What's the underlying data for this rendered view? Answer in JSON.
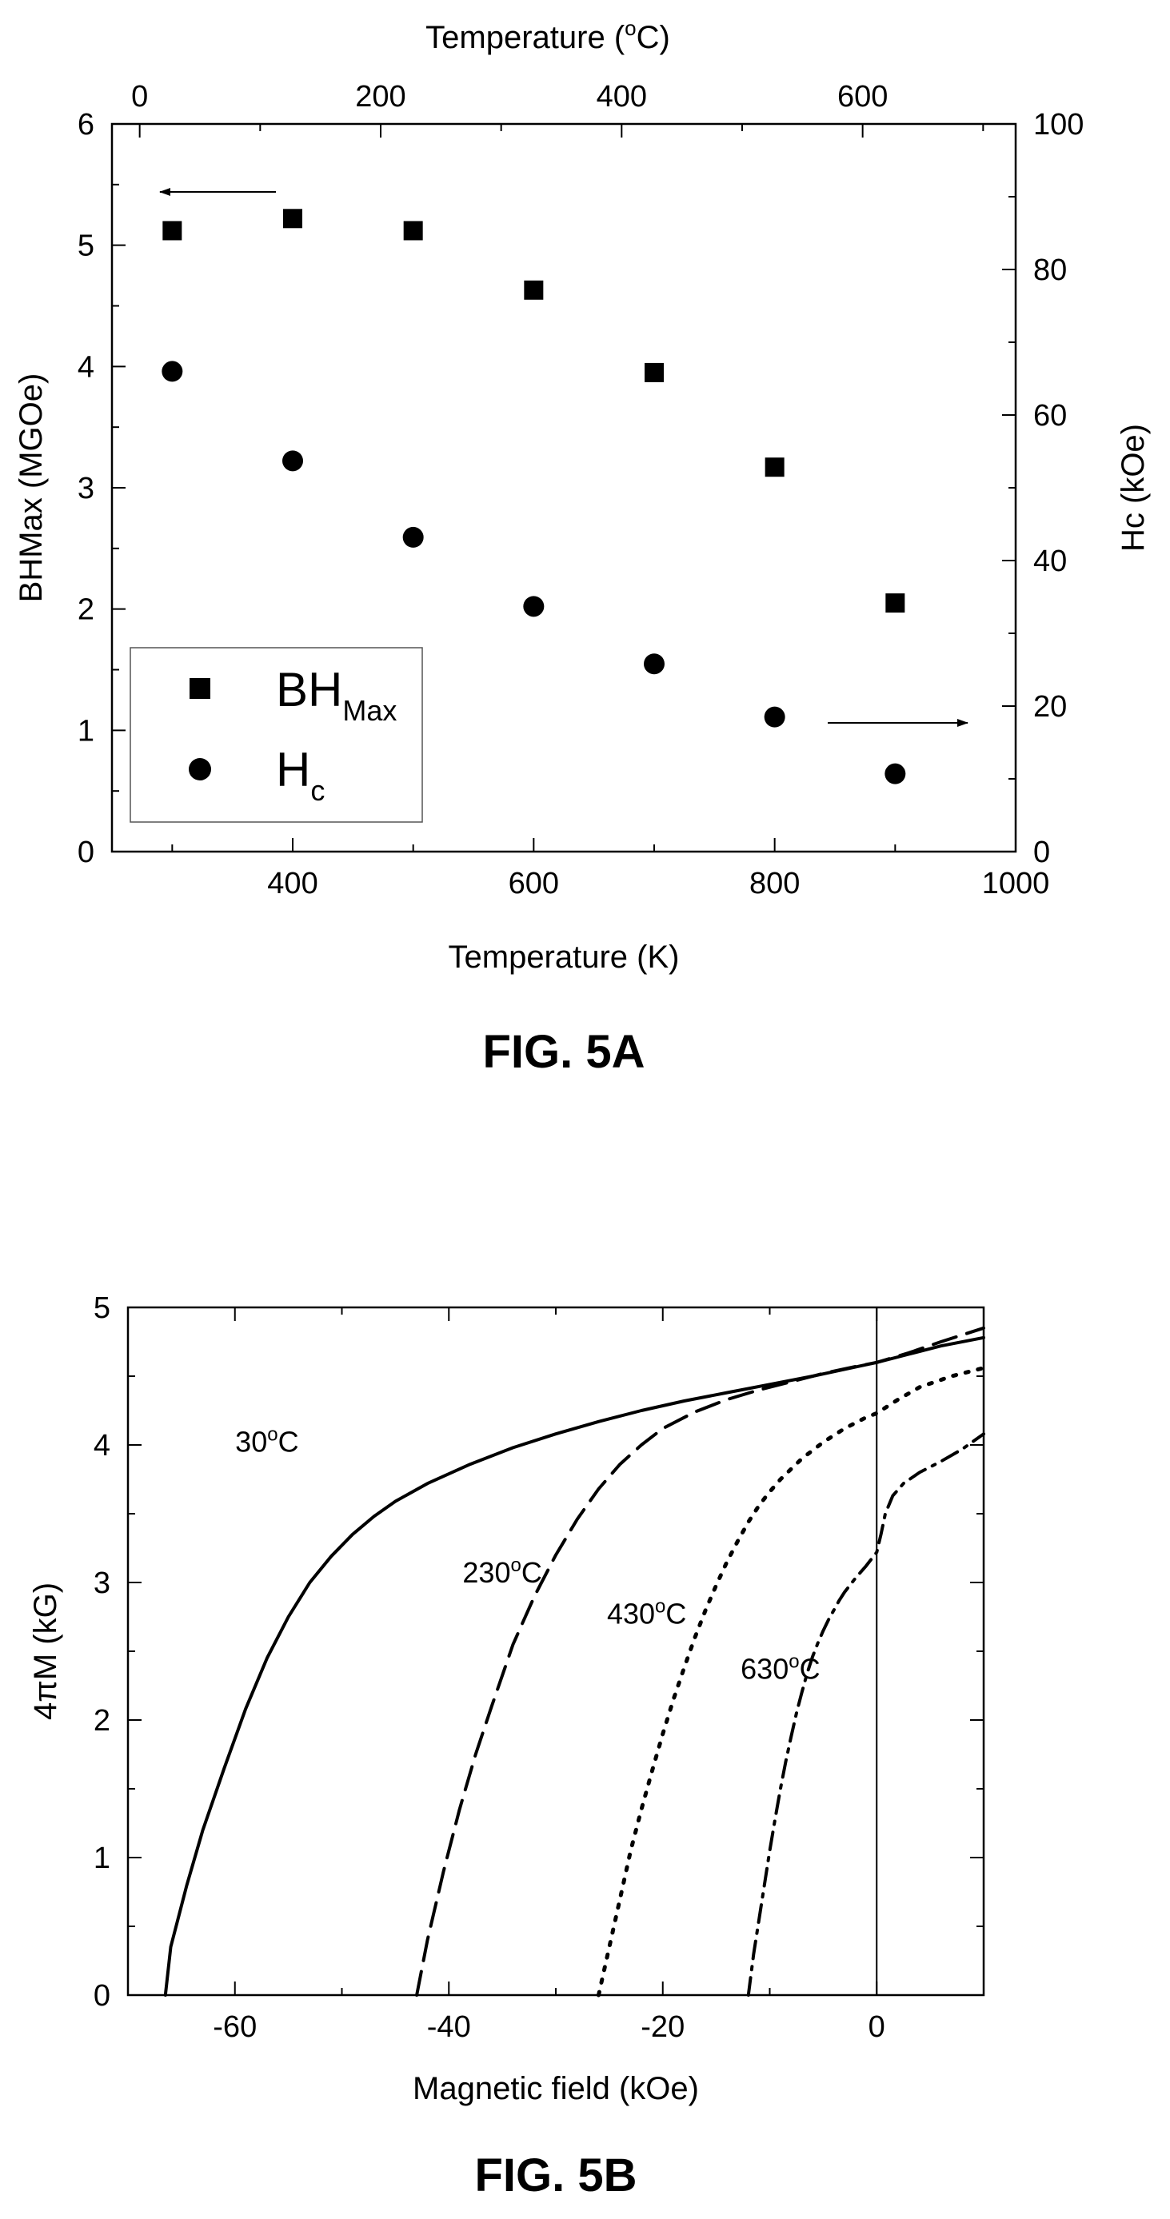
{
  "chart_data": [
    {
      "id": "fig5a",
      "type": "scatter",
      "caption": "FIG. 5A",
      "xlabel": "Temperature (K)",
      "xlim": [
        250,
        1000
      ],
      "xticks": [
        400,
        600,
        800,
        1000
      ],
      "x2label": "Temperature (",
      "x2label_sup": "o",
      "x2label_end": "C)",
      "x2lim": [
        -23,
        727
      ],
      "x2ticks": [
        0,
        200,
        400,
        600
      ],
      "ylabel": "BHMax (MGOe)",
      "ylim": [
        0,
        6
      ],
      "yticks": [
        0,
        1,
        2,
        3,
        4,
        5,
        6
      ],
      "y2label": "Hc (kOe)",
      "y2lim": [
        0,
        100
      ],
      "y2ticks": [
        0,
        20,
        40,
        60,
        80,
        100
      ],
      "legend_position": "bottom-left",
      "series": [
        {
          "name": "BH",
          "name_sub": "Max",
          "marker": "square",
          "axis": "left",
          "x": [
            300,
            400,
            500,
            600,
            700,
            800,
            900
          ],
          "values": [
            5.12,
            5.22,
            5.12,
            4.63,
            3.95,
            3.17,
            2.05
          ]
        },
        {
          "name": "H",
          "name_sub": "c",
          "marker": "circle",
          "axis": "right",
          "x": [
            300,
            400,
            500,
            600,
            700,
            800,
            900
          ],
          "values": [
            66,
            53.7,
            43.2,
            33.7,
            25.8,
            18.5,
            10.7
          ]
        }
      ],
      "annotations": [
        "arrow pointing to left axis near BHMax series",
        "arrow pointing to right axis near Hc series"
      ]
    },
    {
      "id": "fig5b",
      "type": "line",
      "caption": "FIG. 5B",
      "xlabel": "Magnetic field (kOe)",
      "xlim": [
        -70,
        10
      ],
      "xticks": [
        -60,
        -40,
        -20,
        0
      ],
      "ylabel": "4πM (kG)",
      "ylim": [
        0,
        5
      ],
      "yticks": [
        0,
        1,
        2,
        3,
        4,
        5
      ],
      "vertical_line_x": 0,
      "series": [
        {
          "name": "30",
          "name_end": "C",
          "style": "solid",
          "x": [
            -66.5,
            -66,
            -64.5,
            -63,
            -61,
            -59,
            -57,
            -55,
            -53,
            -51,
            -49,
            -47,
            -45,
            -42,
            -38,
            -34,
            -30,
            -26,
            -22,
            -18,
            -14,
            -10,
            -6,
            -3,
            0,
            3,
            6,
            10
          ],
          "values": [
            0,
            0.35,
            0.8,
            1.2,
            1.65,
            2.08,
            2.45,
            2.75,
            3.0,
            3.19,
            3.35,
            3.48,
            3.59,
            3.72,
            3.86,
            3.98,
            4.08,
            4.17,
            4.25,
            4.32,
            4.38,
            4.44,
            4.5,
            4.55,
            4.6,
            4.66,
            4.72,
            4.78
          ]
        },
        {
          "name": "230",
          "name_end": "C",
          "style": "dashed",
          "x": [
            -43,
            -42,
            -40.5,
            -39,
            -37.5,
            -36,
            -34,
            -32,
            -30,
            -28,
            -26,
            -24,
            -22,
            -20,
            -17,
            -14,
            -11,
            -8,
            -5,
            -2,
            0,
            3,
            6,
            10
          ],
          "values": [
            0,
            0.4,
            0.9,
            1.35,
            1.75,
            2.1,
            2.55,
            2.9,
            3.2,
            3.46,
            3.68,
            3.86,
            4.0,
            4.12,
            4.24,
            4.33,
            4.4,
            4.46,
            4.52,
            4.57,
            4.6,
            4.67,
            4.75,
            4.85
          ]
        },
        {
          "name": "430",
          "name_end": "C",
          "style": "dotted",
          "x": [
            -26,
            -25,
            -24,
            -23,
            -22,
            -21,
            -20,
            -19,
            -18,
            -17,
            -16,
            -15,
            -14,
            -13,
            -12,
            -11,
            -10,
            -9,
            -7,
            -5,
            -3,
            -1,
            0,
            2,
            4,
            7,
            10
          ],
          "values": [
            0,
            0.35,
            0.7,
            1.05,
            1.35,
            1.63,
            1.9,
            2.15,
            2.38,
            2.6,
            2.8,
            2.98,
            3.15,
            3.3,
            3.44,
            3.56,
            3.66,
            3.75,
            3.9,
            4.02,
            4.12,
            4.2,
            4.23,
            4.33,
            4.42,
            4.5,
            4.56
          ]
        },
        {
          "name": "630",
          "name_end": "C",
          "style": "dashdot",
          "x": [
            -12,
            -11.5,
            -11,
            -10.5,
            -10,
            -9.5,
            -9,
            -8.5,
            -8,
            -7.5,
            -7,
            -6.5,
            -6,
            -5.5,
            -5,
            -4.5,
            -4,
            -3.5,
            -3,
            -2,
            -1,
            -0.5,
            0,
            0.4,
            0.8,
            1.5,
            2.5,
            4,
            6,
            8,
            10
          ],
          "values": [
            0,
            0.3,
            0.55,
            0.8,
            1.05,
            1.28,
            1.5,
            1.7,
            1.88,
            2.05,
            2.2,
            2.34,
            2.46,
            2.56,
            2.65,
            2.73,
            2.8,
            2.87,
            2.93,
            3.03,
            3.12,
            3.17,
            3.22,
            3.35,
            3.5,
            3.63,
            3.72,
            3.8,
            3.88,
            3.97,
            4.08
          ]
        }
      ]
    }
  ]
}
